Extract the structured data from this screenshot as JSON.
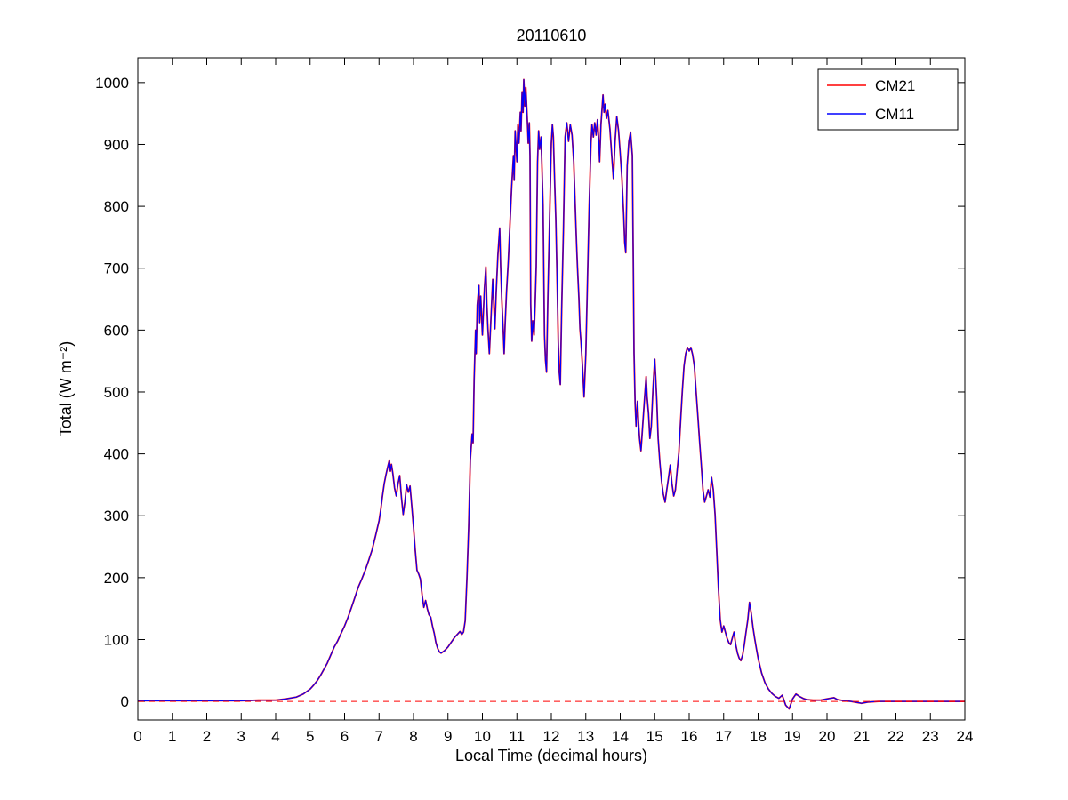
{
  "figure": {
    "title": "20110610"
  },
  "legend": {
    "entries": [
      {
        "label": "CM21",
        "color": "#ff0000"
      },
      {
        "label": "CM11",
        "color": "#0000ff"
      }
    ]
  },
  "chart_data": {
    "type": "line",
    "title": "20110610",
    "xlabel": "Local Time (decimal hours)",
    "ylabel": "Total (W m⁻²)",
    "xlim": [
      0,
      24
    ],
    "ylim": [
      -30,
      1040
    ],
    "xticks": [
      0,
      1,
      2,
      3,
      4,
      5,
      6,
      7,
      8,
      9,
      10,
      11,
      12,
      13,
      14,
      15,
      16,
      17,
      18,
      19,
      20,
      21,
      22,
      23,
      24
    ],
    "yticks": [
      0,
      100,
      200,
      300,
      400,
      500,
      600,
      700,
      800,
      900,
      1000
    ],
    "grid": false,
    "legend_position": "top-right",
    "zero_line": {
      "y": 0,
      "color": "#ff0000",
      "style": "dashed"
    },
    "series": [
      {
        "name": "CM21",
        "color": "#ff0000",
        "width": 1.8
      },
      {
        "name": "CM11",
        "color": "#0000ff",
        "width": 1.1
      }
    ],
    "points": [
      [
        0,
        1
      ],
      [
        0.3,
        1
      ],
      [
        0.6,
        1
      ],
      [
        1,
        1
      ],
      [
        1.5,
        1
      ],
      [
        2,
        1
      ],
      [
        2.5,
        1
      ],
      [
        3,
        1
      ],
      [
        3.5,
        2
      ],
      [
        4,
        2
      ],
      [
        4.3,
        4
      ],
      [
        4.6,
        7
      ],
      [
        4.8,
        12
      ],
      [
        5,
        20
      ],
      [
        5.1,
        26
      ],
      [
        5.2,
        33
      ],
      [
        5.3,
        42
      ],
      [
        5.4,
        52
      ],
      [
        5.5,
        62
      ],
      [
        5.6,
        75
      ],
      [
        5.7,
        88
      ],
      [
        5.8,
        98
      ],
      [
        5.9,
        110
      ],
      [
        6,
        122
      ],
      [
        6.1,
        136
      ],
      [
        6.2,
        152
      ],
      [
        6.3,
        168
      ],
      [
        6.4,
        185
      ],
      [
        6.5,
        198
      ],
      [
        6.6,
        212
      ],
      [
        6.7,
        228
      ],
      [
        6.8,
        245
      ],
      [
        6.9,
        268
      ],
      [
        7,
        292
      ],
      [
        7.05,
        310
      ],
      [
        7.1,
        332
      ],
      [
        7.15,
        352
      ],
      [
        7.2,
        366
      ],
      [
        7.25,
        378
      ],
      [
        7.3,
        390
      ],
      [
        7.33,
        372
      ],
      [
        7.36,
        383
      ],
      [
        7.4,
        368
      ],
      [
        7.45,
        345
      ],
      [
        7.5,
        332
      ],
      [
        7.55,
        352
      ],
      [
        7.6,
        365
      ],
      [
        7.65,
        330
      ],
      [
        7.7,
        302
      ],
      [
        7.75,
        322
      ],
      [
        7.8,
        350
      ],
      [
        7.85,
        338
      ],
      [
        7.9,
        348
      ],
      [
        7.95,
        315
      ],
      [
        8,
        282
      ],
      [
        8.05,
        245
      ],
      [
        8.1,
        212
      ],
      [
        8.15,
        206
      ],
      [
        8.2,
        198
      ],
      [
        8.25,
        172
      ],
      [
        8.3,
        152
      ],
      [
        8.35,
        163
      ],
      [
        8.4,
        150
      ],
      [
        8.45,
        140
      ],
      [
        8.5,
        136
      ],
      [
        8.55,
        122
      ],
      [
        8.6,
        110
      ],
      [
        8.65,
        95
      ],
      [
        8.7,
        86
      ],
      [
        8.75,
        80
      ],
      [
        8.8,
        78
      ],
      [
        8.9,
        82
      ],
      [
        9,
        88
      ],
      [
        9.1,
        96
      ],
      [
        9.2,
        104
      ],
      [
        9.3,
        110
      ],
      [
        9.35,
        113
      ],
      [
        9.4,
        108
      ],
      [
        9.45,
        112
      ],
      [
        9.5,
        130
      ],
      [
        9.55,
        200
      ],
      [
        9.6,
        280
      ],
      [
        9.65,
        390
      ],
      [
        9.7,
        432
      ],
      [
        9.73,
        418
      ],
      [
        9.76,
        520
      ],
      [
        9.8,
        600
      ],
      [
        9.82,
        562
      ],
      [
        9.85,
        640
      ],
      [
        9.9,
        672
      ],
      [
        9.92,
        612
      ],
      [
        9.95,
        655
      ],
      [
        10,
        592
      ],
      [
        10.03,
        632
      ],
      [
        10.06,
        668
      ],
      [
        10.1,
        702
      ],
      [
        10.13,
        642
      ],
      [
        10.16,
        602
      ],
      [
        10.2,
        562
      ],
      [
        10.25,
        622
      ],
      [
        10.3,
        682
      ],
      [
        10.33,
        642
      ],
      [
        10.36,
        602
      ],
      [
        10.4,
        662
      ],
      [
        10.45,
        722
      ],
      [
        10.5,
        765
      ],
      [
        10.53,
        702
      ],
      [
        10.56,
        652
      ],
      [
        10.6,
        602
      ],
      [
        10.63,
        562
      ],
      [
        10.66,
        612
      ],
      [
        10.7,
        662
      ],
      [
        10.75,
        712
      ],
      [
        10.8,
        772
      ],
      [
        10.85,
        832
      ],
      [
        10.9,
        882
      ],
      [
        10.92,
        842
      ],
      [
        10.95,
        922
      ],
      [
        11,
        872
      ],
      [
        11.03,
        932
      ],
      [
        11.06,
        902
      ],
      [
        11.1,
        952
      ],
      [
        11.12,
        922
      ],
      [
        11.15,
        985
      ],
      [
        11.18,
        952
      ],
      [
        11.2,
        1005
      ],
      [
        11.23,
        962
      ],
      [
        11.26,
        992
      ],
      [
        11.3,
        942
      ],
      [
        11.33,
        902
      ],
      [
        11.36,
        935
      ],
      [
        11.38,
        882
      ],
      [
        11.4,
        642
      ],
      [
        11.43,
        582
      ],
      [
        11.46,
        615
      ],
      [
        11.5,
        592
      ],
      [
        11.53,
        642
      ],
      [
        11.56,
        702
      ],
      [
        11.6,
        872
      ],
      [
        11.63,
        922
      ],
      [
        11.66,
        892
      ],
      [
        11.7,
        912
      ],
      [
        11.73,
        862
      ],
      [
        11.76,
        802
      ],
      [
        11.8,
        592
      ],
      [
        11.83,
        552
      ],
      [
        11.86,
        532
      ],
      [
        11.9,
        652
      ],
      [
        11.95,
        782
      ],
      [
        12,
        902
      ],
      [
        12.03,
        932
      ],
      [
        12.06,
        912
      ],
      [
        12.1,
        832
      ],
      [
        12.13,
        782
      ],
      [
        12.16,
        702
      ],
      [
        12.2,
        582
      ],
      [
        12.23,
        532
      ],
      [
        12.26,
        512
      ],
      [
        12.3,
        632
      ],
      [
        12.35,
        762
      ],
      [
        12.4,
        912
      ],
      [
        12.45,
        935
      ],
      [
        12.5,
        905
      ],
      [
        12.55,
        932
      ],
      [
        12.6,
        915
      ],
      [
        12.65,
        872
      ],
      [
        12.7,
        792
      ],
      [
        12.73,
        742
      ],
      [
        12.76,
        702
      ],
      [
        12.8,
        652
      ],
      [
        12.83,
        602
      ],
      [
        12.86,
        582
      ],
      [
        12.9,
        545
      ],
      [
        12.95,
        492
      ],
      [
        13,
        562
      ],
      [
        13.05,
        682
      ],
      [
        13.1,
        802
      ],
      [
        13.15,
        902
      ],
      [
        13.18,
        932
      ],
      [
        13.22,
        912
      ],
      [
        13.26,
        935
      ],
      [
        13.3,
        915
      ],
      [
        13.34,
        940
      ],
      [
        13.38,
        902
      ],
      [
        13.4,
        872
      ],
      [
        13.44,
        932
      ],
      [
        13.5,
        980
      ],
      [
        13.53,
        952
      ],
      [
        13.56,
        965
      ],
      [
        13.6,
        942
      ],
      [
        13.64,
        955
      ],
      [
        13.7,
        925
      ],
      [
        13.75,
        885
      ],
      [
        13.8,
        845
      ],
      [
        13.85,
        905
      ],
      [
        13.9,
        945
      ],
      [
        13.95,
        922
      ],
      [
        14,
        885
      ],
      [
        14.05,
        845
      ],
      [
        14.1,
        785
      ],
      [
        14.13,
        742
      ],
      [
        14.16,
        725
      ],
      [
        14.2,
        865
      ],
      [
        14.25,
        905
      ],
      [
        14.3,
        920
      ],
      [
        14.35,
        882
      ],
      [
        14.38,
        702
      ],
      [
        14.4,
        562
      ],
      [
        14.43,
        482
      ],
      [
        14.46,
        445
      ],
      [
        14.5,
        485
      ],
      [
        14.53,
        452
      ],
      [
        14.56,
        425
      ],
      [
        14.6,
        405
      ],
      [
        14.65,
        445
      ],
      [
        14.7,
        485
      ],
      [
        14.75,
        525
      ],
      [
        14.78,
        492
      ],
      [
        14.82,
        465
      ],
      [
        14.86,
        425
      ],
      [
        14.9,
        445
      ],
      [
        14.95,
        505
      ],
      [
        15,
        553
      ],
      [
        15.03,
        522
      ],
      [
        15.06,
        485
      ],
      [
        15.1,
        425
      ],
      [
        15.15,
        385
      ],
      [
        15.2,
        355
      ],
      [
        15.25,
        335
      ],
      [
        15.3,
        322
      ],
      [
        15.35,
        342
      ],
      [
        15.4,
        362
      ],
      [
        15.45,
        382
      ],
      [
        15.5,
        352
      ],
      [
        15.55,
        332
      ],
      [
        15.6,
        342
      ],
      [
        15.65,
        372
      ],
      [
        15.7,
        402
      ],
      [
        15.75,
        452
      ],
      [
        15.8,
        502
      ],
      [
        15.85,
        542
      ],
      [
        15.9,
        562
      ],
      [
        15.95,
        572
      ],
      [
        16,
        566
      ],
      [
        16.05,
        572
      ],
      [
        16.1,
        560
      ],
      [
        16.15,
        542
      ],
      [
        16.2,
        502
      ],
      [
        16.25,
        462
      ],
      [
        16.3,
        422
      ],
      [
        16.35,
        382
      ],
      [
        16.4,
        342
      ],
      [
        16.45,
        322
      ],
      [
        16.5,
        332
      ],
      [
        16.55,
        342
      ],
      [
        16.6,
        330
      ],
      [
        16.65,
        362
      ],
      [
        16.7,
        342
      ],
      [
        16.75,
        302
      ],
      [
        16.8,
        242
      ],
      [
        16.85,
        182
      ],
      [
        16.9,
        132
      ],
      [
        16.95,
        112
      ],
      [
        17,
        122
      ],
      [
        17.05,
        112
      ],
      [
        17.1,
        102
      ],
      [
        17.15,
        95
      ],
      [
        17.2,
        92
      ],
      [
        17.25,
        102
      ],
      [
        17.3,
        112
      ],
      [
        17.35,
        92
      ],
      [
        17.4,
        78
      ],
      [
        17.45,
        70
      ],
      [
        17.5,
        66
      ],
      [
        17.55,
        75
      ],
      [
        17.6,
        92
      ],
      [
        17.65,
        112
      ],
      [
        17.7,
        132
      ],
      [
        17.75,
        160
      ],
      [
        17.8,
        142
      ],
      [
        17.85,
        120
      ],
      [
        17.9,
        102
      ],
      [
        17.95,
        85
      ],
      [
        18,
        70
      ],
      [
        18.1,
        46
      ],
      [
        18.2,
        30
      ],
      [
        18.3,
        20
      ],
      [
        18.4,
        13
      ],
      [
        18.5,
        8
      ],
      [
        18.6,
        5
      ],
      [
        18.7,
        10
      ],
      [
        18.75,
        2
      ],
      [
        18.8,
        -6
      ],
      [
        18.9,
        -12
      ],
      [
        19,
        4
      ],
      [
        19.1,
        12
      ],
      [
        19.2,
        8
      ],
      [
        19.3,
        5
      ],
      [
        19.4,
        3
      ],
      [
        19.6,
        2
      ],
      [
        19.8,
        2
      ],
      [
        20,
        4
      ],
      [
        20.2,
        6
      ],
      [
        20.3,
        3
      ],
      [
        20.5,
        1
      ],
      [
        20.7,
        0
      ],
      [
        21,
        -3
      ],
      [
        21.2,
        -1
      ],
      [
        21.5,
        0
      ],
      [
        22,
        0
      ],
      [
        22.5,
        0
      ],
      [
        23,
        0
      ],
      [
        23.5,
        0
      ],
      [
        24,
        0
      ]
    ]
  }
}
